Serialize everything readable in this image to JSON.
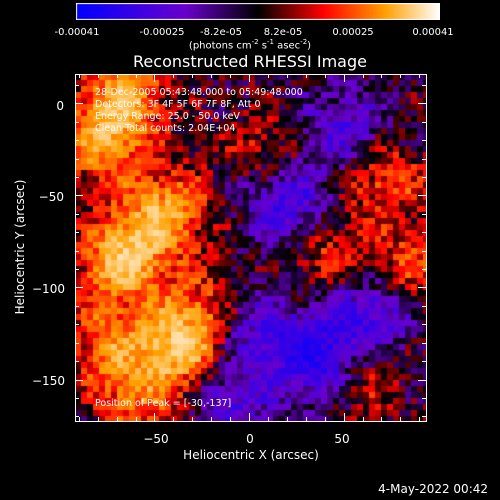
{
  "colorbar": {
    "ticks": [
      "-0.00041",
      "-0.00025",
      "-8.2e-05",
      "8.2e-05",
      "0.00025",
      "0.00041"
    ],
    "units_text": "(photons cm",
    "units_exp1": "-2",
    "units_mid1": " s",
    "units_exp2": "-1",
    "units_mid2": " asec",
    "units_exp3": "-2",
    "units_end": ")",
    "colors": [
      "#0000ff",
      "#6a00cc",
      "#000000",
      "#ff0000",
      "#ffa000",
      "#ffffff"
    ]
  },
  "title": "Reconstructed RHESSI Image",
  "info": {
    "line1": "28-Dec-2005 05:43:48.000 to 05:49:48.000",
    "line2": "Detectors: 3F 4F 5F 6F 7F 8F, Att 0",
    "line3": "Energy Range: 25.0 - 50.0 keV",
    "line4": "Clean    Total counts: 2.04E+04"
  },
  "peak": "Position of Peak = [-30,-137]",
  "date": "4-May-2022 00:42",
  "chart_data": {
    "type": "heatmap",
    "title": "Reconstructed RHESSI Image",
    "xlabel": "Heliocentric X (arcsec)",
    "ylabel": "Heliocentric Y (arcsec)",
    "xlim": [
      -92,
      93
    ],
    "ylim": [
      -172,
      16
    ],
    "xticks": [
      -50,
      0,
      50
    ],
    "yticks": [
      0,
      -50,
      -100,
      -150
    ],
    "xtick_labels": [
      "−50",
      "0",
      "50"
    ],
    "ytick_labels": [
      "0",
      "−50",
      "−100",
      "−150"
    ],
    "colorbar_range": [
      -0.00041,
      0.00041
    ],
    "peak": [
      -30,
      -137
    ],
    "hotspots": [
      {
        "x": -67,
        "y": -85,
        "level": 0.95
      },
      {
        "x": -35,
        "y": -130,
        "level": 1.0
      },
      {
        "x": -45,
        "y": -58,
        "level": 0.8
      },
      {
        "x": -78,
        "y": -20,
        "level": 0.75
      },
      {
        "x": -65,
        "y": 5,
        "level": 0.7
      },
      {
        "x": -75,
        "y": -130,
        "level": 0.6
      },
      {
        "x": -58,
        "y": -160,
        "level": 0.55
      },
      {
        "x": 70,
        "y": -40,
        "level": 0.55
      },
      {
        "x": 40,
        "y": -80,
        "level": 0.45
      },
      {
        "x": 85,
        "y": -90,
        "level": 0.5
      },
      {
        "x": 60,
        "y": -145,
        "level": 0.45
      },
      {
        "x": 10,
        "y": -25,
        "level": 0.35
      },
      {
        "x": -20,
        "y": -105,
        "level": 0.35
      }
    ],
    "coldspots": [
      {
        "x": 35,
        "y": -137,
        "level": -0.9
      },
      {
        "x": 20,
        "y": -55,
        "level": -0.7
      },
      {
        "x": 65,
        "y": -115,
        "level": -0.7
      },
      {
        "x": 0,
        "y": -120,
        "level": -0.5
      },
      {
        "x": 50,
        "y": -15,
        "level": -0.55
      },
      {
        "x": -10,
        "y": -160,
        "level": -0.5
      }
    ]
  }
}
